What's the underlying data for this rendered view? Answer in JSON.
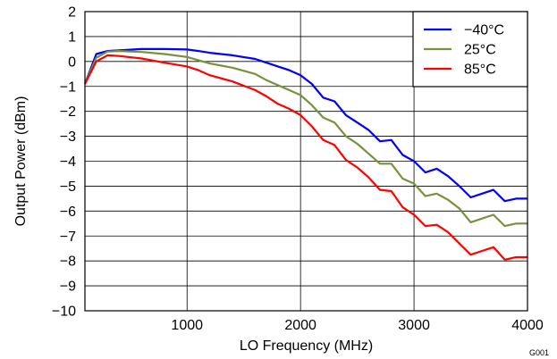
{
  "figure_id": "G001",
  "chart_data": {
    "type": "line",
    "title": "",
    "xlabel": "LO Frequency (MHz)",
    "ylabel": "Output Power (dBm)",
    "xlim": [
      100,
      4000
    ],
    "ylim": [
      -10,
      2
    ],
    "xticks": [
      1000,
      2000,
      3000,
      4000
    ],
    "yticks": [
      2,
      1,
      0,
      -1,
      -2,
      -3,
      -4,
      -5,
      -6,
      -7,
      -8,
      -9,
      -10
    ],
    "xtick_labels": [
      "1000",
      "2000",
      "3000",
      "4000"
    ],
    "ytick_labels": [
      "2",
      "1",
      "0",
      "−1",
      "−2",
      "−3",
      "−4",
      "−5",
      "−6",
      "−7",
      "−8",
      "−9",
      "−10"
    ],
    "grid": true,
    "legend_position": "top-right",
    "series": [
      {
        "name": "−40°C",
        "color": "#0000ff",
        "x": [
          100,
          200,
          300,
          400,
          600,
          800,
          1000,
          1100,
          1200,
          1400,
          1600,
          1700,
          1800,
          1900,
          2000,
          2100,
          2200,
          2300,
          2400,
          2500,
          2600,
          2700,
          2800,
          2900,
          3000,
          3100,
          3200,
          3300,
          3400,
          3500,
          3600,
          3700,
          3800,
          3900,
          4000
        ],
        "y": [
          -0.9,
          0.3,
          0.42,
          0.45,
          0.5,
          0.5,
          0.48,
          0.42,
          0.35,
          0.25,
          0.1,
          -0.05,
          -0.2,
          -0.35,
          -0.55,
          -0.9,
          -1.45,
          -1.6,
          -2.15,
          -2.45,
          -2.75,
          -3.2,
          -3.15,
          -3.75,
          -4.0,
          -4.45,
          -4.3,
          -4.6,
          -5.0,
          -5.45,
          -5.3,
          -5.15,
          -5.6,
          -5.5,
          -5.5
        ]
      },
      {
        "name": "25°C",
        "color": "#76923c",
        "x": [
          100,
          200,
          300,
          400,
          600,
          800,
          1000,
          1100,
          1200,
          1400,
          1600,
          1700,
          1800,
          1900,
          2000,
          2100,
          2200,
          2300,
          2400,
          2500,
          2600,
          2700,
          2800,
          2900,
          3000,
          3100,
          3200,
          3300,
          3400,
          3500,
          3600,
          3700,
          3800,
          3900,
          4000
        ],
        "y": [
          -0.9,
          0.15,
          0.4,
          0.42,
          0.38,
          0.3,
          0.18,
          0.05,
          -0.08,
          -0.25,
          -0.5,
          -0.75,
          -0.95,
          -1.15,
          -1.35,
          -1.75,
          -2.25,
          -2.45,
          -3.0,
          -3.3,
          -3.7,
          -4.1,
          -4.1,
          -4.7,
          -4.9,
          -5.4,
          -5.3,
          -5.55,
          -5.9,
          -6.45,
          -6.3,
          -6.15,
          -6.6,
          -6.5,
          -6.5
        ]
      },
      {
        "name": "85°C",
        "color": "#ff0000",
        "x": [
          100,
          200,
          300,
          400,
          600,
          800,
          1000,
          1100,
          1200,
          1400,
          1600,
          1700,
          1800,
          1900,
          2000,
          2100,
          2200,
          2300,
          2400,
          2500,
          2600,
          2700,
          2800,
          2900,
          3000,
          3100,
          3200,
          3300,
          3400,
          3500,
          3600,
          3700,
          3800,
          3900,
          4000
        ],
        "y": [
          -0.9,
          0.0,
          0.25,
          0.22,
          0.12,
          -0.05,
          -0.2,
          -0.35,
          -0.55,
          -0.8,
          -1.15,
          -1.4,
          -1.7,
          -1.9,
          -2.15,
          -2.6,
          -3.15,
          -3.35,
          -3.95,
          -4.25,
          -4.65,
          -5.15,
          -5.2,
          -5.85,
          -6.15,
          -6.6,
          -6.55,
          -6.85,
          -7.3,
          -7.75,
          -7.6,
          -7.45,
          -7.95,
          -7.85,
          -7.85
        ]
      }
    ]
  }
}
